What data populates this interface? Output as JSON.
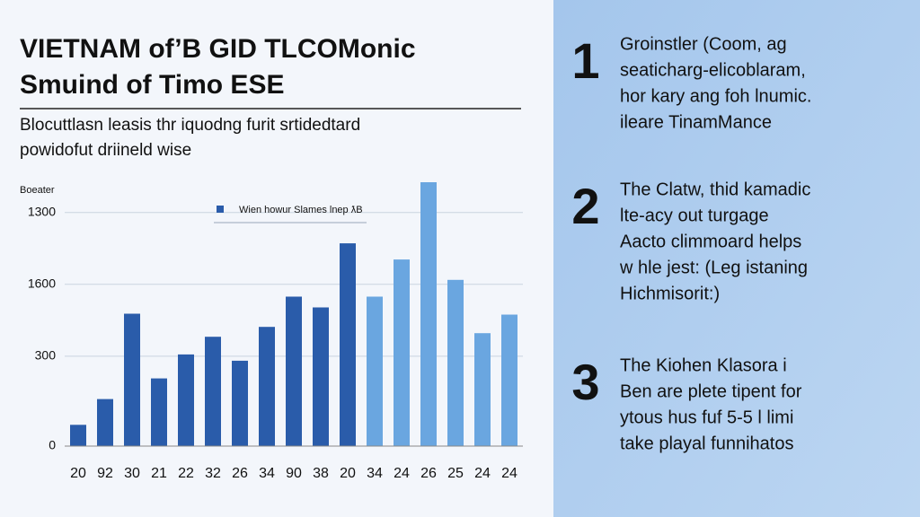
{
  "header": {
    "title_lines": [
      "VIETNAM of’B GID TLCOMonic",
      "Smuind of Timo ESE"
    ],
    "subtitle_lines": [
      "Blocuttlasn leasis thr iquodng furit srtidedtard",
      "powidofut driineld wise"
    ]
  },
  "chart_data": {
    "type": "bar",
    "y_label": "Boeater",
    "legend": "Wien howur Slames lnep ƛB",
    "categories": [
      "20",
      "92",
      "30",
      "21",
      "22",
      "32",
      "26",
      "34",
      "90",
      "38",
      "20",
      "34",
      "24",
      "26",
      "25",
      "24",
      "24"
    ],
    "values": [
      71,
      157,
      442,
      226,
      306,
      365,
      285,
      398,
      499,
      463,
      677,
      499,
      623,
      881,
      555,
      377,
      439
    ],
    "colors": [
      "#2a5caa",
      "#2a5caa",
      "#2a5caa",
      "#2a5caa",
      "#2a5caa",
      "#2a5caa",
      "#2a5caa",
      "#2a5caa",
      "#2a5caa",
      "#2a5caa",
      "#2a5caa",
      "#6aa6e0",
      "#6aa6e0",
      "#6aa6e0",
      "#6aa6e0",
      "#6aa6e0",
      "#6aa6e0"
    ],
    "ylim": [
      0,
      920
    ],
    "yticks": [
      0,
      300,
      {
        "value": 540,
        "label": "1600"
      },
      {
        "value": 780,
        "label": "1300"
      }
    ],
    "grid": true
  },
  "items": [
    {
      "number": "1",
      "lines": [
        "Groinstler (Coom, ag",
        "seaticharg-elicoblaram,",
        "hor kary ang foh lnumic.",
        "ileare TinamMance"
      ]
    },
    {
      "number": "2",
      "lines": [
        "The Clatw, thid kamadic",
        "lte-acy out turgage",
        "Aacto climmoard helps",
        "w hle jest: (Leg istaning",
        "Hichmisorit:)"
      ]
    },
    {
      "number": "3",
      "lines": [
        "The Kiohen Klasora i",
        "Ben are plete tipent for",
        "ytous hus fuf 5-5 l limi",
        "take playal funnihatos"
      ]
    }
  ]
}
